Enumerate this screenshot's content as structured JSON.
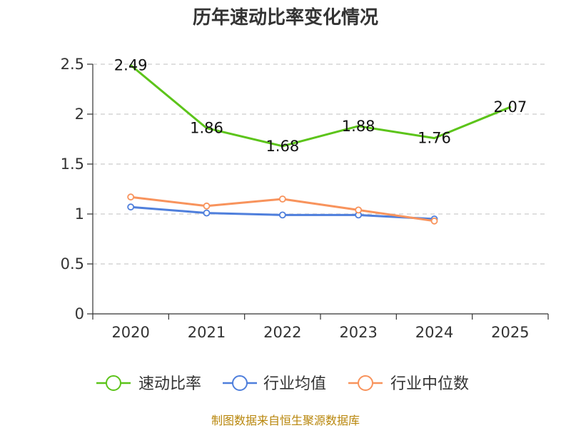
{
  "chart_data": {
    "type": "line",
    "title": "历年速动比率变化情况",
    "categories": [
      "2020",
      "2021",
      "2022",
      "2023",
      "2024",
      "2025"
    ],
    "ylim": [
      0,
      2.5
    ],
    "yticks": [
      "0",
      "0.5",
      "1",
      "1.5",
      "2",
      "2.5"
    ],
    "ytick_values": [
      0,
      0.5,
      1,
      1.5,
      2,
      2.5
    ],
    "grid": true,
    "legend_position": "bottom",
    "series": [
      {
        "name": "速动比率",
        "color": "#5cc41a",
        "values": [
          2.49,
          1.86,
          1.68,
          1.88,
          1.76,
          2.07
        ],
        "labels": [
          "2.49",
          "1.86",
          "1.68",
          "1.88",
          "1.76",
          "2.07"
        ],
        "show_labels": true,
        "show_markers": false
      },
      {
        "name": "行业均值",
        "color": "#4f7fdc",
        "values": [
          1.07,
          1.01,
          0.99,
          0.99,
          0.95,
          null
        ],
        "show_labels": false,
        "show_markers": true
      },
      {
        "name": "行业中位数",
        "color": "#f8935c",
        "values": [
          1.17,
          1.08,
          1.15,
          1.04,
          0.93,
          null
        ],
        "show_labels": false,
        "show_markers": true
      }
    ]
  },
  "source": "制图数据来自恒生聚源数据库"
}
